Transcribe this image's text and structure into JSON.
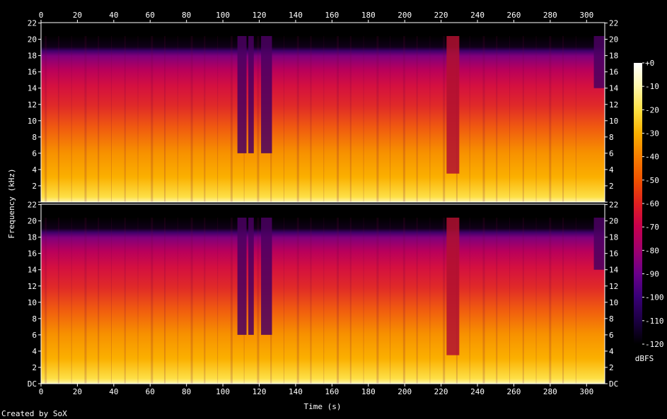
{
  "chart_data": {
    "type": "heatmap",
    "x_axis": {
      "label": "Time (s)",
      "range": [
        0,
        310
      ],
      "ticks": [
        0,
        20,
        40,
        60,
        80,
        100,
        120,
        140,
        160,
        180,
        200,
        220,
        240,
        260,
        280,
        300
      ]
    },
    "y_axis": {
      "label": "Frequency (kHz)",
      "range_khz": [
        0,
        22.05
      ],
      "tick_values": [
        0,
        2,
        4,
        6,
        8,
        10,
        12,
        14,
        16,
        18,
        20,
        22
      ],
      "tick_labels": [
        "DC",
        "2",
        "4",
        "6",
        "8",
        "10",
        "12",
        "14",
        "16",
        "18",
        "20",
        "22"
      ]
    },
    "channels": 2,
    "colorbar": {
      "label": "dBFS",
      "range": [
        -120,
        0
      ],
      "ticks": [
        0,
        -10,
        -20,
        -30,
        -40,
        -50,
        -60,
        -70,
        -80,
        -90,
        -100,
        -110,
        -120
      ],
      "tick_labels": [
        "+0",
        "-10",
        "-20",
        "-30",
        "-40",
        "-50",
        "-60",
        "-70",
        "-80",
        "-90",
        "-100",
        "-110",
        "-120"
      ],
      "colors": [
        "#000000",
        "#1a0040",
        "#3a0078",
        "#6a008a",
        "#9c0070",
        "#c8004c",
        "#e02020",
        "#f05000",
        "#f88000",
        "#fbb000",
        "#fde040",
        "#fff8b0",
        "#ffffff"
      ]
    },
    "quiet_segments_s": [
      [
        108,
        113
      ],
      [
        114,
        117
      ],
      [
        121,
        127
      ],
      [
        223,
        230
      ],
      [
        304,
        310
      ]
    ],
    "credit": "Created by SoX"
  }
}
